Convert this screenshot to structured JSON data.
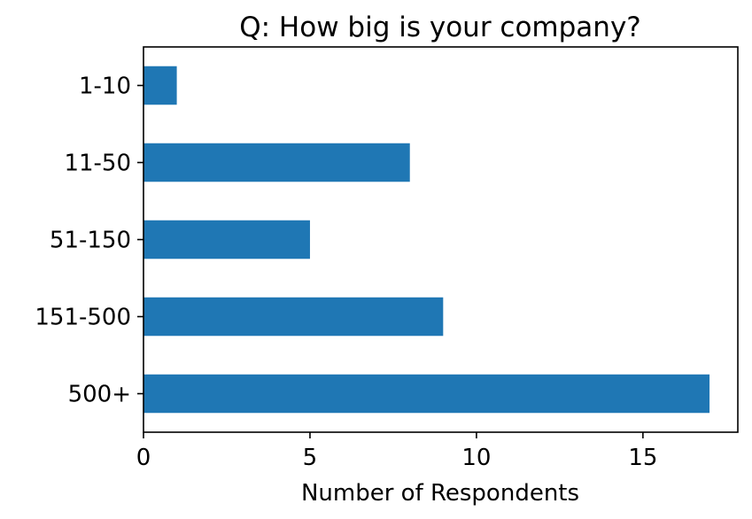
{
  "chart_data": {
    "type": "bar",
    "orientation": "horizontal",
    "title": "Q: How big is your company?",
    "xlabel": "Number of Respondents",
    "ylabel": "",
    "categories": [
      "1-10",
      "11-50",
      "51-150",
      "151-500",
      "500+"
    ],
    "values": [
      1,
      8,
      5,
      9,
      17
    ],
    "xlim": [
      0,
      17.85
    ],
    "xticks": [
      0,
      5,
      10,
      15
    ],
    "bar_color": "#1f77b4",
    "grid": false,
    "legend": "none"
  }
}
